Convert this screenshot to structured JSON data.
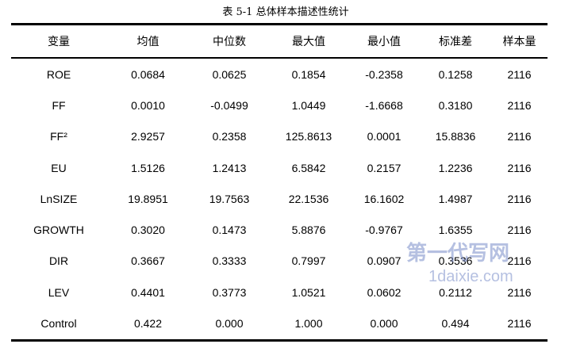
{
  "header": {
    "title": "表 5-1 总体样本描述性统计"
  },
  "table": {
    "columns": [
      "变量",
      "均值",
      "中位数",
      "最大值",
      "最小值",
      "标准差",
      "样本量"
    ],
    "rows": [
      [
        "ROE",
        "0.0684",
        "0.0625",
        "0.1854",
        "-0.2358",
        "0.1258",
        "2116"
      ],
      [
        "FF",
        "0.0010",
        "-0.0499",
        "1.0449",
        "-1.6668",
        "0.3180",
        "2116"
      ],
      [
        "FF²",
        "2.9257",
        "0.2358",
        "125.8613",
        "0.0001",
        "15.8836",
        "2116"
      ],
      [
        "EU",
        "1.5126",
        "1.2413",
        "6.5842",
        "0.2157",
        "1.2236",
        "2116"
      ],
      [
        "LnSIZE",
        "19.8951",
        "19.7563",
        "22.1536",
        "16.1602",
        "1.4987",
        "2116"
      ],
      [
        "GROWTH",
        "0.3020",
        "0.1473",
        "5.8876",
        "-0.9767",
        "1.6355",
        "2116"
      ],
      [
        "DIR",
        "0.3667",
        "0.3333",
        "0.7997",
        "0.0907",
        "0.3536",
        "2116"
      ],
      [
        "LEV",
        "0.4401",
        "0.3773",
        "1.0521",
        "0.0602",
        "0.2112",
        "2116"
      ],
      [
        "Control",
        "0.422",
        "0.000",
        "1.000",
        "0.000",
        "0.494",
        "2116"
      ]
    ]
  },
  "watermark": {
    "name": "第一代写网",
    "url": "1daixie.com"
  }
}
